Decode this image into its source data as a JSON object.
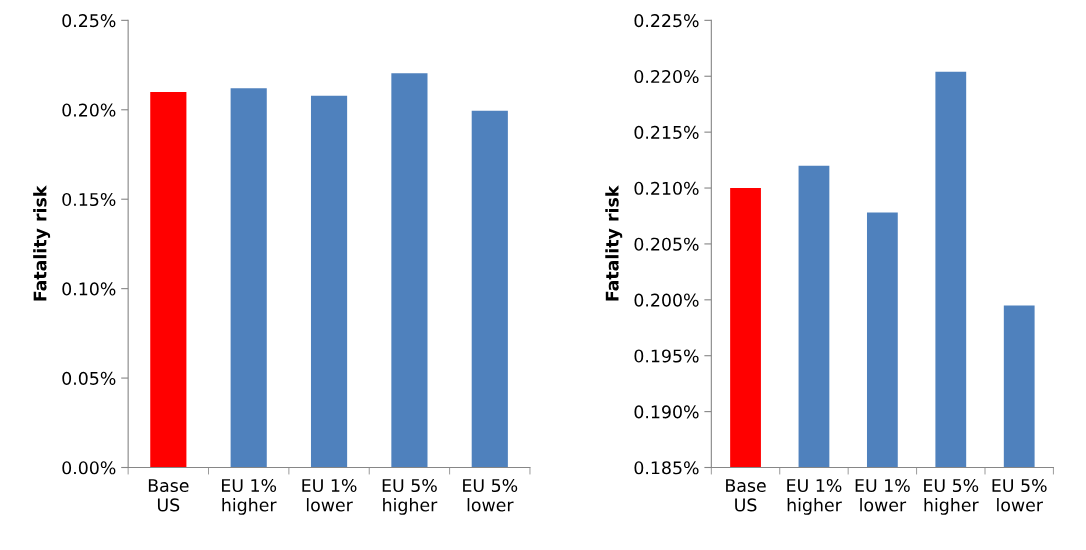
{
  "chart_data": [
    {
      "type": "bar",
      "ylabel": "Fatality risk",
      "categories": [
        "Base\nUS",
        "EU 1%\nhigher",
        "EU 1%\nlower",
        "EU 5%\nhigher",
        "EU 5%\nlower"
      ],
      "values": [
        0.21,
        0.212,
        0.2078,
        0.2204,
        0.1995
      ],
      "colors": [
        "#ff0000",
        "#4f81bd",
        "#4f81bd",
        "#4f81bd",
        "#4f81bd"
      ],
      "ylim": [
        0,
        0.25
      ],
      "yticks": [
        {
          "value": 0,
          "label": "0.00%"
        },
        {
          "value": 0.05,
          "label": "0.05%"
        },
        {
          "value": 0.1,
          "label": "0.10%"
        },
        {
          "value": 0.15,
          "label": "0.15%"
        },
        {
          "value": 0.2,
          "label": "0.20%"
        },
        {
          "value": 0.25,
          "label": "0.25%"
        }
      ],
      "grid": false,
      "legend": false
    },
    {
      "type": "bar",
      "ylabel": "Fatality risk",
      "categories": [
        "Base\nUS",
        "EU 1%\nhigher",
        "EU 1%\nlower",
        "EU 5%\nhigher",
        "EU 5%\nlower"
      ],
      "values": [
        0.21,
        0.212,
        0.2078,
        0.2204,
        0.1995
      ],
      "colors": [
        "#ff0000",
        "#4f81bd",
        "#4f81bd",
        "#4f81bd",
        "#4f81bd"
      ],
      "ylim": [
        0.185,
        0.225
      ],
      "yticks": [
        {
          "value": 0.185,
          "label": "0.185%"
        },
        {
          "value": 0.19,
          "label": "0.190%"
        },
        {
          "value": 0.195,
          "label": "0.195%"
        },
        {
          "value": 0.2,
          "label": "0.200%"
        },
        {
          "value": 0.205,
          "label": "0.205%"
        },
        {
          "value": 0.21,
          "label": "0.210%"
        },
        {
          "value": 0.215,
          "label": "0.215%"
        },
        {
          "value": 0.22,
          "label": "0.220%"
        },
        {
          "value": 0.225,
          "label": "0.225%"
        }
      ],
      "grid": false,
      "legend": false
    }
  ]
}
